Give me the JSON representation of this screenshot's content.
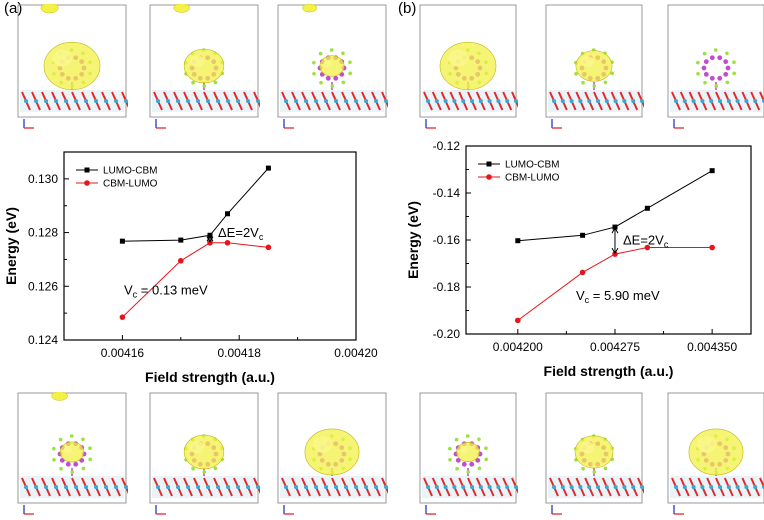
{
  "panels": [
    {
      "label": "(a)",
      "annotations": {
        "delta": "ΔE=2V",
        "delta_sub": "c",
        "vc_prefix": "V",
        "vc_sub": "c",
        "vc_value": " = 0.13 meV"
      },
      "chart_data": {
        "type": "line",
        "xlabel": "Field strength (a.u.)",
        "ylabel": "Energy (eV)",
        "xlim": [
          0.00415,
          0.0042
        ],
        "ylim": [
          0.124,
          0.131
        ],
        "xticks": [
          "0.00416",
          "0.00418",
          "0.00420"
        ],
        "xtick_values": [
          0.00416,
          0.00418,
          0.0042
        ],
        "yticks": [
          "0.124",
          "0.126",
          "0.128",
          "0.130"
        ],
        "ytick_values": [
          0.124,
          0.126,
          0.128,
          0.13
        ],
        "legend_placement": "top-left",
        "series": [
          {
            "name": "LUMO-CBM",
            "color": "#000000",
            "marker": "square",
            "x": [
              0.00416,
              0.00417,
              0.004175,
              0.004178,
              0.004185
            ],
            "y": [
              0.12768,
              0.12772,
              0.1279,
              0.1287,
              0.1304
            ]
          },
          {
            "name": "CBM-LUMO",
            "color": "#e8141b",
            "marker": "circle",
            "x": [
              0.00416,
              0.00417,
              0.004175,
              0.004178,
              0.004185
            ],
            "y": [
              0.12485,
              0.12695,
              0.12762,
              0.12762,
              0.12745
            ]
          }
        ]
      }
    },
    {
      "label": "(b)",
      "annotations": {
        "delta": "ΔE=2V",
        "delta_sub": "c",
        "vc_prefix": "V",
        "vc_sub": "c",
        "vc_value": " = 5.90 meV"
      },
      "chart_data": {
        "type": "line",
        "xlabel": "Field strength (a.u.)",
        "ylabel": "Energy (eV)",
        "xlim": [
          0.00416,
          0.00438
        ],
        "ylim": [
          -0.2,
          -0.12
        ],
        "xticks": [
          "0.004200",
          "0.004275",
          "0.004350"
        ],
        "xtick_values": [
          0.0042,
          0.004275,
          0.00435
        ],
        "yticks": [
          "-0.20",
          "-0.18",
          "-0.16",
          "-0.14",
          "-0.12"
        ],
        "ytick_values": [
          -0.2,
          -0.18,
          -0.16,
          -0.14,
          -0.12
        ],
        "legend_placement": "top-left",
        "series": [
          {
            "name": "LUMO-CBM",
            "color": "#000000",
            "marker": "square",
            "x": [
              0.0042,
              0.00425,
              0.004275,
              0.0043,
              0.00435
            ],
            "y": [
              -0.1603,
              -0.158,
              -0.1545,
              -0.1465,
              -0.1305
            ]
          },
          {
            "name": "CBM-LUMO",
            "color": "#e8141b",
            "marker": "circle",
            "x": [
              0.0042,
              0.00425,
              0.004275,
              0.0043,
              0.00435
            ],
            "y": [
              -0.1942,
              -0.1738,
              -0.166,
              -0.1632,
              -0.1632
            ]
          }
        ]
      }
    }
  ],
  "structures": {
    "a_top": [
      {
        "cloud": 1.0,
        "cap": 0.6
      },
      {
        "cloud": 0.55,
        "cap": 0.5
      },
      {
        "cloud": 0.12,
        "cap": 0.4
      }
    ],
    "a_bottom": [
      {
        "cloud": 0.1,
        "cap": 0.5
      },
      {
        "cloud": 0.55,
        "cap": 0.0
      },
      {
        "cloud": 0.95,
        "cap": 0.0
      }
    ],
    "b_top": [
      {
        "cloud": 1.0,
        "cap": 0.0
      },
      {
        "cloud": 0.45,
        "cap": 0.0
      },
      {
        "cloud": 0.0,
        "cap": 0.0
      }
    ],
    "b_bottom": [
      {
        "cloud": 0.08,
        "cap": 0.0
      },
      {
        "cloud": 0.5,
        "cap": 0.0
      },
      {
        "cloud": 0.95,
        "cap": 0.0
      }
    ]
  }
}
